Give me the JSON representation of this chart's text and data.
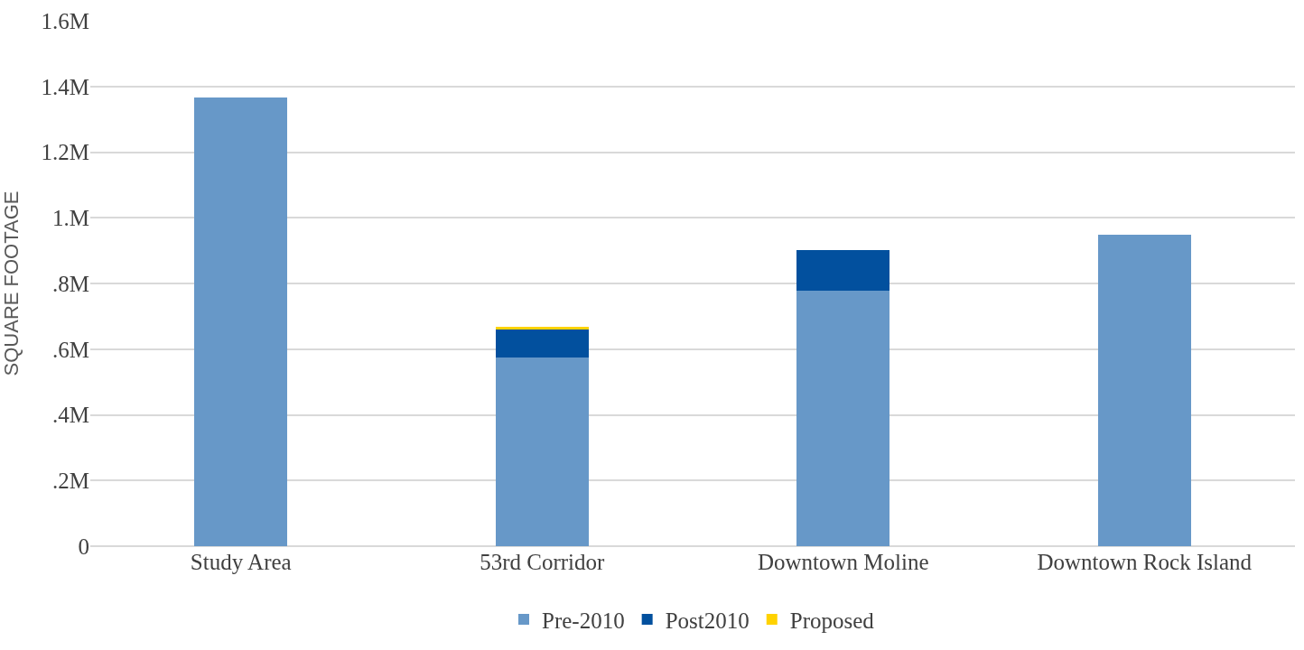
{
  "chart_data": {
    "type": "bar",
    "ylabel": "SQUARE FOOTAGE",
    "categories": [
      "Study Area",
      "53rd Corridor",
      "Downtown Moline",
      "Downtown Rock Island"
    ],
    "stacked": true,
    "series": [
      {
        "name": "Pre-2010",
        "color": "#6798c8",
        "values": [
          1.367,
          0.575,
          0.778,
          0.948
        ]
      },
      {
        "name": "Post2010",
        "color": "#02509e",
        "values": [
          0,
          0.085,
          0.123,
          0
        ]
      },
      {
        "name": "Proposed",
        "color": "#ffd200",
        "values": [
          0,
          0.008,
          0,
          0
        ]
      }
    ],
    "ylim": [
      0,
      1.6
    ],
    "yticks": [
      {
        "value": 0,
        "label": "0"
      },
      {
        "value": 0.2,
        "label": ".2M"
      },
      {
        "value": 0.4,
        "label": ".4M"
      },
      {
        "value": 0.6,
        "label": ".6M"
      },
      {
        "value": 0.8,
        "label": ".8M"
      },
      {
        "value": 1,
        "label": "1.M"
      },
      {
        "value": 1.2,
        "label": "1.2M"
      },
      {
        "value": 1.4,
        "label": "1.4M"
      },
      {
        "value": 1.6,
        "label": "1.6M"
      }
    ],
    "grid": "y",
    "legend": "bottom"
  }
}
